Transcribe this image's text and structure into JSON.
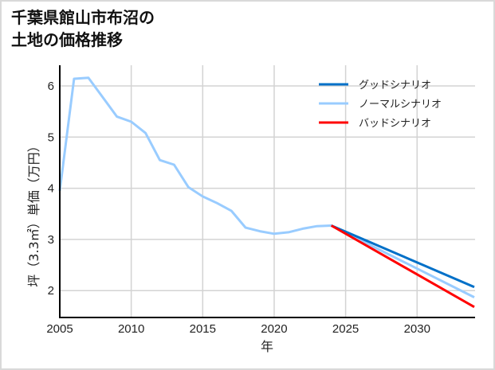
{
  "title": {
    "line1": "千葉県館山市布沼の",
    "line2": "土地の価格推移"
  },
  "chart_data": {
    "type": "line",
    "title": "千葉県館山市布沼の土地の価格推移",
    "xlabel": "年",
    "ylabel": "坪（3.3㎡）単価（万円）",
    "xlim": [
      2005,
      2034
    ],
    "ylim": [
      1.5,
      6.4
    ],
    "xticks": [
      2005,
      2010,
      2015,
      2020,
      2025,
      2030
    ],
    "yticks": [
      2,
      3,
      4,
      5,
      6
    ],
    "grid": true,
    "legend_position": "upper right",
    "series": [
      {
        "name": "グッドシナリオ",
        "color": "#0070c8",
        "x": [
          2024,
          2034
        ],
        "values": [
          3.27,
          2.07
        ]
      },
      {
        "name": "ノーマルシナリオ",
        "color": "#99ccff",
        "x": [
          2005,
          2006,
          2007,
          2008,
          2009,
          2010,
          2011,
          2012,
          2013,
          2014,
          2015,
          2016,
          2017,
          2018,
          2019,
          2020,
          2021,
          2022,
          2023,
          2024,
          2034
        ],
        "values": [
          3.95,
          6.14,
          6.16,
          5.78,
          5.4,
          5.3,
          5.08,
          4.55,
          4.46,
          4.02,
          3.84,
          3.71,
          3.56,
          3.23,
          3.16,
          3.11,
          3.14,
          3.21,
          3.26,
          3.27,
          1.87
        ]
      },
      {
        "name": "バッドシナリオ",
        "color": "#ff0000",
        "x": [
          2024,
          2034
        ],
        "values": [
          3.27,
          1.68
        ]
      }
    ]
  },
  "legend": {
    "items": [
      {
        "label": "グッドシナリオ",
        "color": "#0070c8"
      },
      {
        "label": "ノーマルシナリオ",
        "color": "#99ccff"
      },
      {
        "label": "バッドシナリオ",
        "color": "#ff0000"
      }
    ]
  },
  "axes": {
    "xlabel": "年",
    "ylabel": "坪（3.3㎡）単価（万円）",
    "xtick_labels": [
      "2005",
      "2010",
      "2015",
      "2020",
      "2025",
      "2030"
    ],
    "ytick_labels": [
      "2",
      "3",
      "4",
      "5",
      "6"
    ]
  }
}
